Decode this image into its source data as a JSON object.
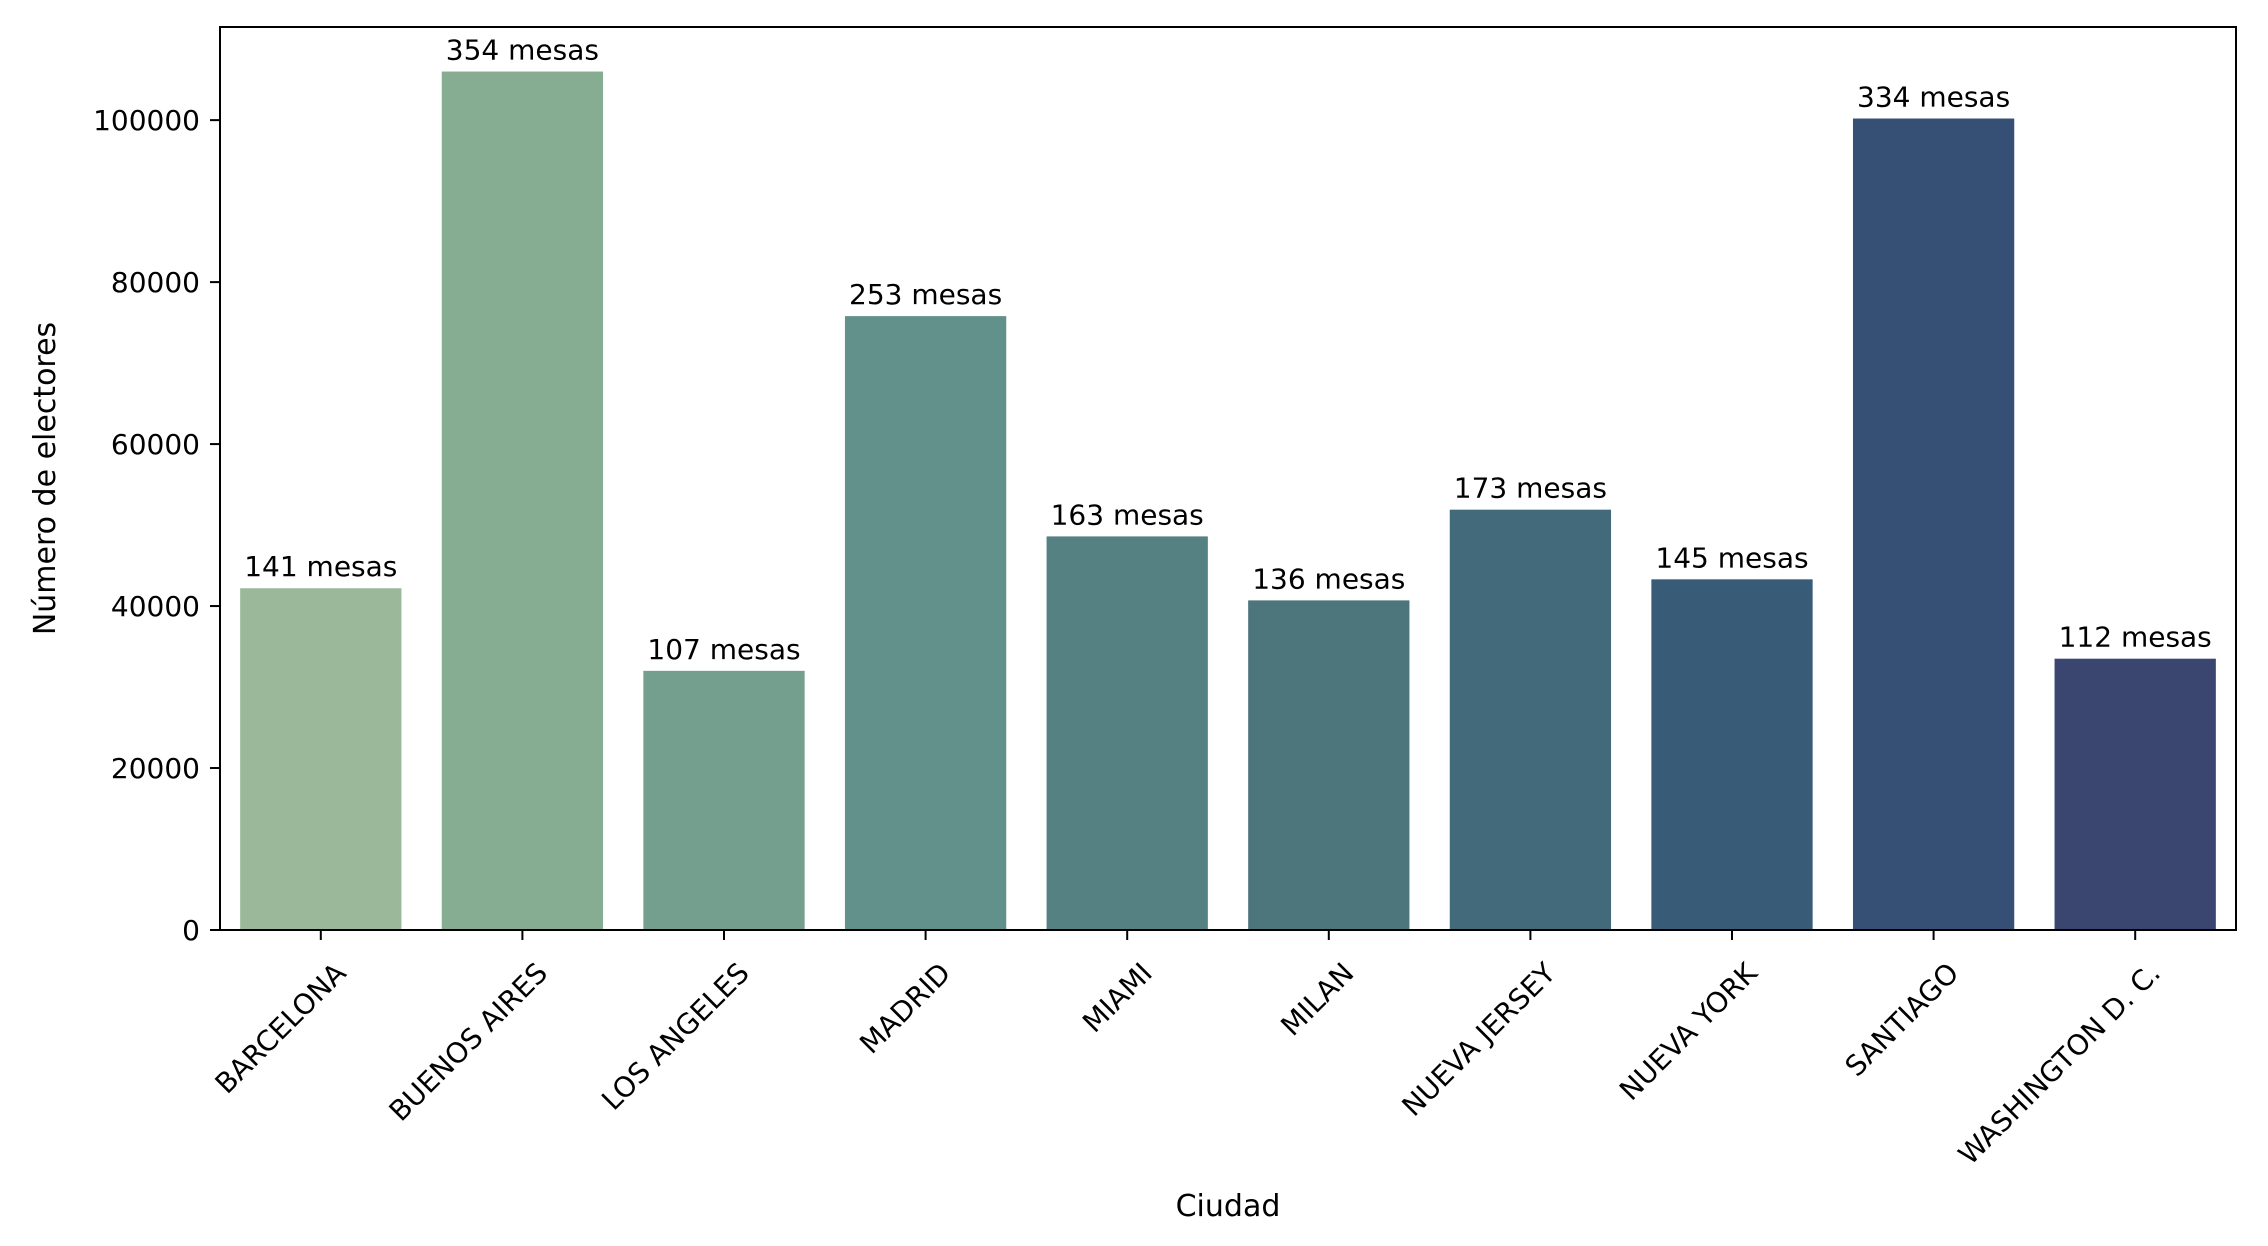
{
  "chart_data": {
    "type": "bar",
    "title": "",
    "xlabel": "Ciudad",
    "ylabel": "Número de electores",
    "ylim": [
      0,
      111500
    ],
    "yticks": [
      0,
      20000,
      40000,
      60000,
      80000,
      100000
    ],
    "grid": false,
    "legend": "none",
    "categories": [
      "BARCELONA",
      "BUENOS AIRES",
      "LOS ANGELES",
      "MADRID",
      "MIAMI",
      "MILAN",
      "NUEVA JERSEY",
      "NUEVA YORK",
      "SANTIAGO",
      "WASHINGTON D. C."
    ],
    "values": [
      42200,
      106000,
      32000,
      75800,
      48600,
      40700,
      51900,
      43300,
      100200,
      33500
    ],
    "labels": [
      "141 mesas",
      "354 mesas",
      "107 mesas",
      "253 mesas",
      "163 mesas",
      "136 mesas",
      "173 mesas",
      "145 mesas",
      "334 mesas",
      "112 mesas"
    ],
    "colors": [
      "#9bb99a",
      "#86ac92",
      "#749f8f",
      "#62908a",
      "#558183",
      "#4c757c",
      "#426a7a",
      "#385c77",
      "#365075",
      "#3a4570"
    ]
  }
}
